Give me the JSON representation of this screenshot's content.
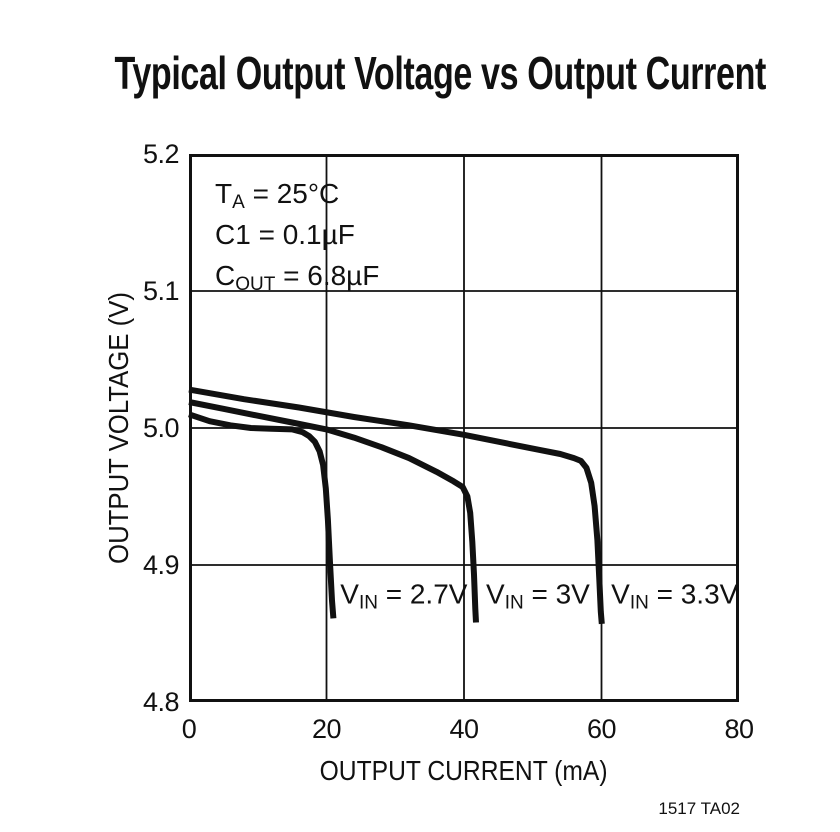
{
  "page": {
    "caption": "1517 TA02"
  },
  "chart_data": {
    "type": "line",
    "title": "Typical Output Voltage vs Output Current",
    "xlabel": "OUTPUT CURRENT (mA)",
    "ylabel": "OUTPUT VOLTAGE (V)",
    "xlim": [
      0,
      80
    ],
    "ylim": [
      4.8,
      5.2
    ],
    "xtick_labels": [
      "0",
      "20",
      "40",
      "60",
      "80"
    ],
    "ytick_labels": [
      "5.2",
      "5.1",
      "5.0",
      "4.9",
      "4.8"
    ],
    "grid": true,
    "legend_position": "none",
    "line_color": "#111111",
    "background": "#ffffff",
    "conditions": [
      {
        "pre": "T",
        "sub": "A",
        "post": " = 25°C"
      },
      {
        "pre": "C1",
        "sub": "",
        "post": " = 0.1µF"
      },
      {
        "pre": "C",
        "sub": "OUT",
        "post": " = 6.8µF"
      }
    ],
    "series": [
      {
        "name": "VIN = 2.7V",
        "label": {
          "pre": "V",
          "sub": "IN",
          "post": " = 2.7V"
        },
        "label_pos": [
          22,
          4.875
        ],
        "points": [
          [
            0,
            5.01
          ],
          [
            3,
            5.005
          ],
          [
            6,
            5.002
          ],
          [
            9,
            5.0
          ],
          [
            12,
            4.9995
          ],
          [
            15,
            4.999
          ],
          [
            16.5,
            4.997
          ],
          [
            17.5,
            4.994
          ],
          [
            18.3,
            4.99
          ],
          [
            19.0,
            4.983
          ],
          [
            19.5,
            4.973
          ],
          [
            19.9,
            4.956
          ],
          [
            20.2,
            4.933
          ],
          [
            20.5,
            4.903
          ],
          [
            20.8,
            4.874
          ],
          [
            21.0,
            4.861
          ]
        ]
      },
      {
        "name": "VIN = 3V",
        "label": {
          "pre": "V",
          "sub": "IN",
          "post": " = 3V"
        },
        "label_pos": [
          43.2,
          4.875
        ],
        "points": [
          [
            0,
            5.019
          ],
          [
            5,
            5.014
          ],
          [
            10,
            5.009
          ],
          [
            15,
            5.004
          ],
          [
            20,
            4.999
          ],
          [
            24,
            4.993
          ],
          [
            28,
            4.986
          ],
          [
            32,
            4.978
          ],
          [
            36,
            4.968
          ],
          [
            38.5,
            4.961
          ],
          [
            39.8,
            4.957
          ],
          [
            40.5,
            4.95
          ],
          [
            40.9,
            4.938
          ],
          [
            41.2,
            4.917
          ],
          [
            41.45,
            4.893
          ],
          [
            41.65,
            4.868
          ],
          [
            41.75,
            4.858
          ]
        ]
      },
      {
        "name": "VIN = 3.3V",
        "label": {
          "pre": "V",
          "sub": "IN",
          "post": " = 3.3V"
        },
        "label_pos": [
          61.4,
          4.875
        ],
        "points": [
          [
            0,
            5.028
          ],
          [
            8,
            5.021
          ],
          [
            16,
            5.015
          ],
          [
            24,
            5.008
          ],
          [
            32,
            5.002
          ],
          [
            40,
            4.995
          ],
          [
            46,
            4.989
          ],
          [
            51,
            4.984
          ],
          [
            54,
            4.981
          ],
          [
            56,
            4.978
          ],
          [
            57,
            4.976
          ],
          [
            57.8,
            4.971
          ],
          [
            58.5,
            4.96
          ],
          [
            59.0,
            4.943
          ],
          [
            59.4,
            4.918
          ],
          [
            59.7,
            4.888
          ],
          [
            59.9,
            4.866
          ],
          [
            60.05,
            4.857
          ]
        ]
      }
    ]
  }
}
